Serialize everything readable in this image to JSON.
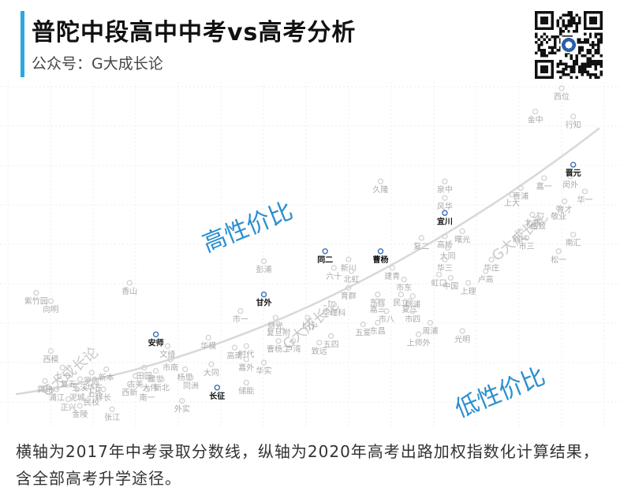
{
  "header": {
    "title": "普陀中段高中中考vs高考分析",
    "subtitle": "公众号：G大成长论"
  },
  "caption": "横轴为2017年中考录取分数线，纵轴为2020年高考出路加权指数化计算结果，含全部高考升学途径。",
  "colors": {
    "accent": "#2aa8de",
    "highlight_point": "#3a6fb0",
    "point": "#cfcfcf",
    "region_text": "#2b8fd0",
    "trend": "#d8d8d8"
  },
  "chart_data": {
    "type": "scatter",
    "title": "",
    "xlabel": "",
    "ylabel": "",
    "grid": true,
    "xlim": [
      0,
      100
    ],
    "ylim": [
      0,
      100
    ],
    "annotations": [
      "高性价比",
      "低性价比"
    ],
    "watermark": "G大成长论",
    "highlighted": [
      {
        "name": "安师",
        "x": 24,
        "y": 26
      },
      {
        "name": "甘外",
        "x": 42.5,
        "y": 38
      },
      {
        "name": "长征",
        "x": 34.5,
        "y": 10
      },
      {
        "name": "同二",
        "x": 53,
        "y": 51
      },
      {
        "name": "曹杨",
        "x": 62.5,
        "y": 51
      },
      {
        "name": "宜川",
        "x": 73.5,
        "y": 62.5
      },
      {
        "name": "晋元",
        "x": 95.5,
        "y": 77
      }
    ],
    "points": [
      {
        "name": "西位",
        "x": 93.5,
        "y": 100
      },
      {
        "name": "金中",
        "x": 89,
        "y": 93
      },
      {
        "name": "行知",
        "x": 95.5,
        "y": 91.5
      },
      {
        "name": "久隆",
        "x": 62.5,
        "y": 72
      },
      {
        "name": "泉中",
        "x": 73.5,
        "y": 72
      },
      {
        "name": "嘉一",
        "x": 90.5,
        "y": 73
      },
      {
        "name": "闵外",
        "x": 95,
        "y": 73.5
      },
      {
        "name": "上大",
        "x": 85,
        "y": 68
      },
      {
        "name": "青浦",
        "x": 86.5,
        "y": 70
      },
      {
        "name": "华一",
        "x": 97.5,
        "y": 69
      },
      {
        "name": "风华",
        "x": 73.5,
        "y": 67
      },
      {
        "name": "育才",
        "x": 94,
        "y": 66
      },
      {
        "name": "敬业",
        "x": 93,
        "y": 64
      },
      {
        "name": "格致",
        "x": 89.5,
        "y": 61
      },
      {
        "name": "北郊",
        "x": 88.5,
        "y": 62
      },
      {
        "name": "曙光",
        "x": 76.5,
        "y": 57
      },
      {
        "name": "高桥",
        "x": 73.5,
        "y": 55.5
      },
      {
        "name": "同一",
        "x": 86.5,
        "y": 57
      },
      {
        "name": "南汇",
        "x": 95.5,
        "y": 56
      },
      {
        "name": "市三",
        "x": 87.5,
        "y": 55
      },
      {
        "name": "复二",
        "x": 69.5,
        "y": 55
      },
      {
        "name": "大同",
        "x": 74,
        "y": 52
      },
      {
        "name": "松一",
        "x": 93,
        "y": 51
      },
      {
        "name": "华三",
        "x": 73.5,
        "y": 48.5
      },
      {
        "name": "华庄",
        "x": 81.5,
        "y": 48.5
      },
      {
        "name": "卢高",
        "x": 80.5,
        "y": 45
      },
      {
        "name": "彭浦",
        "x": 42.5,
        "y": 48
      },
      {
        "name": "新川",
        "x": 57,
        "y": 48.5
      },
      {
        "name": "六十",
        "x": 54.5,
        "y": 46
      },
      {
        "name": "北虹",
        "x": 57.5,
        "y": 45
      },
      {
        "name": "建青",
        "x": 64.5,
        "y": 46
      },
      {
        "name": "虹口",
        "x": 72.5,
        "y": 44
      },
      {
        "name": "中国",
        "x": 74.5,
        "y": 43
      },
      {
        "name": "上理",
        "x": 77.5,
        "y": 41.5
      },
      {
        "name": "市东",
        "x": 66.5,
        "y": 42.5
      },
      {
        "name": "育群",
        "x": 57,
        "y": 40
      },
      {
        "name": "东辉",
        "x": 62,
        "y": 38
      },
      {
        "name": "民立",
        "x": 66,
        "y": 38
      },
      {
        "name": "杨浦",
        "x": 68,
        "y": 37.5
      },
      {
        "name": "华理科",
        "x": 54.5,
        "y": 35
      },
      {
        "name": "复三",
        "x": 67.5,
        "y": 36
      },
      {
        "name": "嘉三",
        "x": 62,
        "y": 36
      },
      {
        "name": "市八",
        "x": 63.5,
        "y": 33
      },
      {
        "name": "市四",
        "x": 68,
        "y": 33
      },
      {
        "name": "上行",
        "x": 50,
        "y": 31
      },
      {
        "name": "五爱",
        "x": 59.5,
        "y": 29
      },
      {
        "name": "周浦",
        "x": 71,
        "y": 29.5
      },
      {
        "name": "光明",
        "x": 76.5,
        "y": 27
      },
      {
        "name": "上师外",
        "x": 69,
        "y": 26
      },
      {
        "name": "东昌",
        "x": 62,
        "y": 29.5
      },
      {
        "name": "五四",
        "x": 54,
        "y": 25.5
      },
      {
        "name": "致远",
        "x": 52,
        "y": 23.5
      },
      {
        "name": "市一",
        "x": 38.5,
        "y": 33
      },
      {
        "name": "继光",
        "x": 44.5,
        "y": 31
      },
      {
        "name": "复旦附",
        "x": 45,
        "y": 29
      },
      {
        "name": "曹杨二",
        "x": 45,
        "y": 24
      },
      {
        "name": "卢湾",
        "x": 47.5,
        "y": 24
      },
      {
        "name": "高南",
        "x": 37.5,
        "y": 22
      },
      {
        "name": "时代",
        "x": 39.5,
        "y": 22.5
      },
      {
        "name": "嘉外",
        "x": 39.5,
        "y": 18.5
      },
      {
        "name": "华实",
        "x": 42.5,
        "y": 17.5
      },
      {
        "name": "储能",
        "x": 39.5,
        "y": 11.5
      },
      {
        "name": "华模",
        "x": 33,
        "y": 25
      },
      {
        "name": "文绮",
        "x": 26,
        "y": 22.5
      },
      {
        "name": "市南",
        "x": 26.5,
        "y": 18.5
      },
      {
        "name": "大同",
        "x": 33.5,
        "y": 17
      },
      {
        "name": "杨思",
        "x": 29,
        "y": 15.5
      },
      {
        "name": "同洲",
        "x": 30,
        "y": 13
      },
      {
        "name": "外实",
        "x": 28.5,
        "y": 6
      },
      {
        "name": "香山",
        "x": 19.5,
        "y": 41.5
      },
      {
        "name": "紫竹园",
        "x": 3.5,
        "y": 38.5
      },
      {
        "name": "向明",
        "x": 6,
        "y": 36
      },
      {
        "name": "西模",
        "x": 6,
        "y": 21
      },
      {
        "name": "七一",
        "x": 8,
        "y": 16
      },
      {
        "name": "罗店",
        "x": 13,
        "y": 14.5
      },
      {
        "name": "复五",
        "x": 9,
        "y": 13.5
      },
      {
        "name": "上外",
        "x": 13.5,
        "y": 10.5
      },
      {
        "name": "龚路",
        "x": 5,
        "y": 12
      },
      {
        "name": "浦江",
        "x": 7,
        "y": 9.5
      },
      {
        "name": "玉溪",
        "x": 11,
        "y": 12.5
      },
      {
        "name": "华东",
        "x": 13.5,
        "y": 12.5
      },
      {
        "name": "泥城",
        "x": 10.5,
        "y": 9.5
      },
      {
        "name": "民校",
        "x": 13,
        "y": 8
      },
      {
        "name": "祥长",
        "x": 15,
        "y": 9.5
      },
      {
        "name": "正兴",
        "x": 9,
        "y": 6.5
      },
      {
        "name": "金陵",
        "x": 11,
        "y": 4.5
      },
      {
        "name": "张江",
        "x": 16.5,
        "y": 3.5
      },
      {
        "name": "新本",
        "x": 15.5,
        "y": 15.5
      },
      {
        "name": "田园",
        "x": 22,
        "y": 16
      },
      {
        "name": "古美",
        "x": 20.5,
        "y": 13.5
      },
      {
        "name": "建世",
        "x": 24,
        "y": 15
      },
      {
        "name": "西新",
        "x": 19.5,
        "y": 11
      },
      {
        "name": "南一",
        "x": 22.5,
        "y": 9.5
      },
      {
        "name": "新北",
        "x": 25,
        "y": 12.5
      },
      {
        "name": "大伟",
        "x": 23,
        "y": 12.5
      }
    ]
  }
}
